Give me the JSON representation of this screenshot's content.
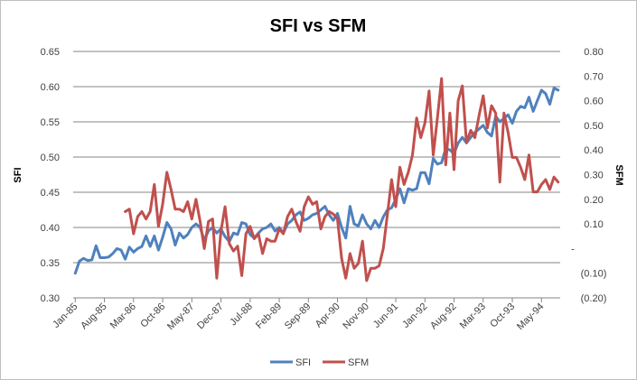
{
  "chart_data": {
    "type": "line",
    "title": "SFI vs SFM",
    "ylabel": "SFI",
    "y2label": "SFM",
    "ylim": [
      0.3,
      0.65
    ],
    "y2lim": [
      -0.2,
      0.8
    ],
    "yticks": [
      "0.30",
      "0.35",
      "0.40",
      "0.45",
      "0.50",
      "0.55",
      "0.60",
      "0.65"
    ],
    "y2ticks": [
      "(0.20)",
      "(0.10)",
      "-",
      "0.10",
      "0.20",
      "0.30",
      "0.40",
      "0.50",
      "0.60",
      "0.70",
      "0.80"
    ],
    "xtick_labels": [
      "Jan-85",
      "Aug-85",
      "Mar-86",
      "Oct-86",
      "May-87",
      "Dec-87",
      "Jul-88",
      "Feb-89",
      "Sep-89",
      "Apr-90",
      "Nov-90",
      "Jun-91",
      "Jan-92",
      "Aug-92",
      "Mar-93",
      "Oct-93",
      "May-94"
    ],
    "x_start": "Jan-85",
    "x_end": "Aug-94",
    "grid": true,
    "legend": "bottom",
    "colors": {
      "SFI": "#4f81bd",
      "SFM": "#c0504d"
    },
    "series": [
      {
        "name": "SFI",
        "axis": "left",
        "values": [
          0.335,
          0.352,
          0.356,
          0.353,
          0.354,
          0.374,
          0.357,
          0.357,
          0.358,
          0.363,
          0.37,
          0.368,
          0.355,
          0.372,
          0.365,
          0.37,
          0.373,
          0.388,
          0.373,
          0.388,
          0.368,
          0.386,
          0.407,
          0.398,
          0.375,
          0.392,
          0.385,
          0.39,
          0.4,
          0.405,
          0.4,
          0.382,
          0.395,
          0.4,
          0.392,
          0.398,
          0.387,
          0.38,
          0.392,
          0.39,
          0.407,
          0.405,
          0.39,
          0.385,
          0.392,
          0.398,
          0.4,
          0.405,
          0.395,
          0.4,
          0.392,
          0.405,
          0.41,
          0.418,
          0.422,
          0.41,
          0.413,
          0.418,
          0.42,
          0.425,
          0.43,
          0.418,
          0.41,
          0.42,
          0.4,
          0.385,
          0.43,
          0.405,
          0.402,
          0.418,
          0.405,
          0.398,
          0.41,
          0.4,
          0.415,
          0.425,
          0.428,
          0.44,
          0.455,
          0.435,
          0.455,
          0.453,
          0.455,
          0.478,
          0.478,
          0.462,
          0.498,
          0.49,
          0.492,
          0.512,
          0.51,
          0.505,
          0.52,
          0.528,
          0.52,
          0.528,
          0.535,
          0.54,
          0.545,
          0.535,
          0.53,
          0.558,
          0.55,
          0.555,
          0.56,
          0.548,
          0.565,
          0.572,
          0.57,
          0.585,
          0.565,
          0.58,
          0.595,
          0.59,
          0.575,
          0.598,
          0.595
        ]
      },
      {
        "name": "SFM",
        "axis": "right",
        "values": [
          null,
          null,
          null,
          null,
          null,
          null,
          null,
          null,
          null,
          null,
          null,
          null,
          0.15,
          0.16,
          0.06,
          0.13,
          0.15,
          0.12,
          0.15,
          0.26,
          0.09,
          0.18,
          0.31,
          0.24,
          0.16,
          0.16,
          0.15,
          0.19,
          0.12,
          0.2,
          0.11,
          0.0,
          0.11,
          0.12,
          -0.12,
          0.07,
          0.17,
          0.02,
          -0.01,
          0.01,
          -0.11,
          0.06,
          0.09,
          0.04,
          0.06,
          -0.02,
          0.04,
          0.03,
          0.03,
          0.08,
          0.06,
          0.13,
          0.16,
          0.11,
          0.07,
          0.17,
          0.21,
          0.18,
          0.19,
          0.08,
          0.13,
          0.15,
          0.14,
          0.12,
          -0.04,
          -0.12,
          -0.02,
          -0.08,
          -0.06,
          0.03,
          -0.13,
          -0.08,
          -0.08,
          -0.07,
          0.0,
          0.14,
          0.28,
          0.17,
          0.33,
          0.26,
          0.31,
          0.38,
          0.53,
          0.45,
          0.51,
          0.64,
          0.38,
          0.53,
          0.69,
          0.34,
          0.55,
          0.32,
          0.6,
          0.66,
          0.43,
          0.48,
          0.45,
          0.54,
          0.62,
          0.49,
          0.58,
          0.55,
          0.27,
          0.55,
          0.47,
          0.37,
          0.37,
          0.33,
          0.28,
          0.38,
          0.23,
          0.23,
          0.26,
          0.28,
          0.24,
          0.29,
          0.27
        ]
      }
    ]
  }
}
